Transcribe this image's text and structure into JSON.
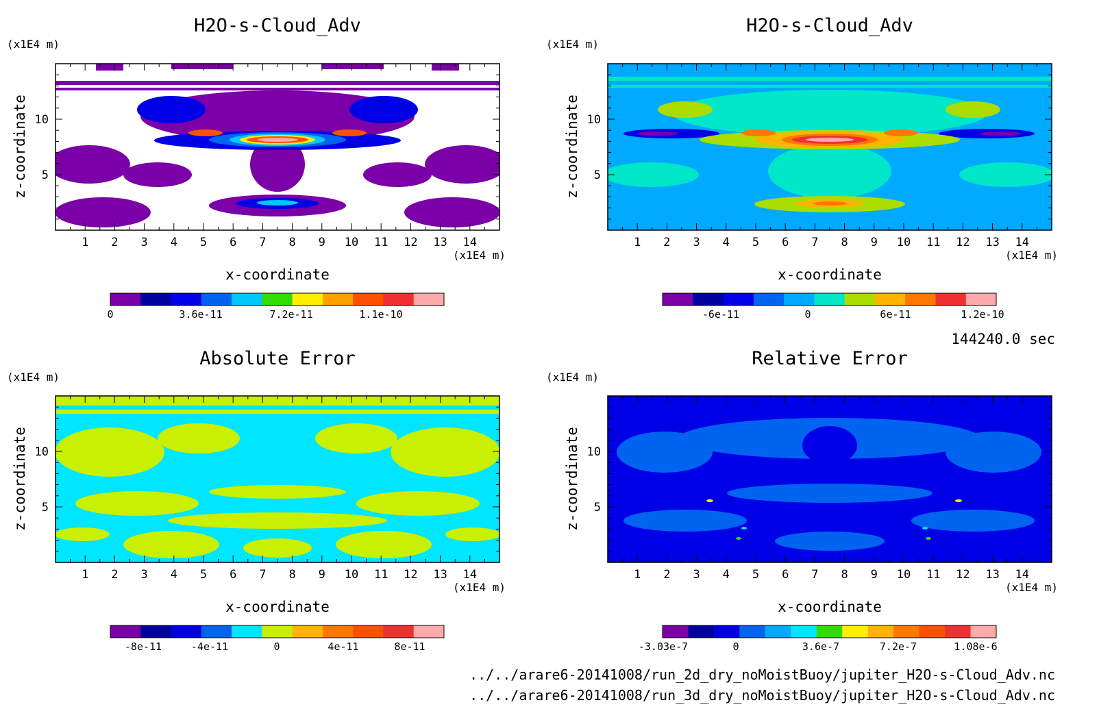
{
  "time_label": "144240.0 sec",
  "file_paths": [
    "../../arare6-20141008/run_2d_dry_noMoistBuoy/jupiter_H2O-s-Cloud_Adv.nc",
    "../../arare6-20141008/run_3d_dry_noMoistBuoy/jupiter_H2O-s-Cloud_Adv.nc"
  ],
  "chart_data": [
    {
      "type": "heatmap",
      "title": "H2O-s-Cloud_Adv",
      "xlabel": "x-coordinate",
      "ylabel": "z-coordinate",
      "x_unit": "(x1E4 m)",
      "y_unit": "(x1E4 m)",
      "xlim": [
        0,
        15
      ],
      "ylim": [
        0,
        15
      ],
      "x_ticks": [
        "1",
        "2",
        "3",
        "4",
        "5",
        "6",
        "7",
        "8",
        "9",
        "10",
        "11",
        "12",
        "13",
        "14"
      ],
      "y_ticks": [
        "5",
        "10"
      ],
      "colorbar_labels": [
        "0",
        "3.6e-11",
        "7.2e-11",
        "1.1e-10"
      ],
      "colorbar_colors": [
        "#7b00a8",
        "#0000a0",
        "#0000e6",
        "#0064f0",
        "#00c8ff",
        "#32dc00",
        "#ffee00",
        "#ffa000",
        "#ff5000",
        "#f03030",
        "#ffaaaa"
      ],
      "colormap_rendering": "white/purple background, blue-to-red core near z≈8 and z≈2.5"
    },
    {
      "type": "heatmap",
      "title": "H2O-s-Cloud_Adv",
      "xlabel": "x-coordinate",
      "ylabel": "z-coordinate",
      "x_unit": "(x1E4 m)",
      "y_unit": "(x1E4 m)",
      "xlim": [
        0,
        15
      ],
      "ylim": [
        0,
        15
      ],
      "x_ticks": [
        "1",
        "2",
        "3",
        "4",
        "5",
        "6",
        "7",
        "8",
        "9",
        "10",
        "11",
        "12",
        "13",
        "14"
      ],
      "y_ticks": [
        "5",
        "10"
      ],
      "colorbar_labels": [
        "-6e-11",
        "0",
        "6e-11",
        "1.2e-10"
      ],
      "colorbar_colors": [
        "#7b00a8",
        "#0000a0",
        "#0000e6",
        "#0064f0",
        "#00aaff",
        "#00e6c8",
        "#aadc00",
        "#ffb400",
        "#ff7800",
        "#f03030",
        "#ffaaaa"
      ]
    },
    {
      "type": "heatmap",
      "title": "Absolute Error",
      "xlabel": "x-coordinate",
      "ylabel": "z-coordinate",
      "x_unit": "(x1E4 m)",
      "y_unit": "(x1E4 m)",
      "xlim": [
        0,
        15
      ],
      "ylim": [
        0,
        15
      ],
      "x_ticks": [
        "1",
        "2",
        "3",
        "4",
        "5",
        "6",
        "7",
        "8",
        "9",
        "10",
        "11",
        "12",
        "13",
        "14"
      ],
      "y_ticks": [
        "5",
        "10"
      ],
      "colorbar_labels": [
        "-8e-11",
        "-4e-11",
        "0",
        "4e-11",
        "8e-11"
      ],
      "colorbar_colors": [
        "#7b00a8",
        "#0000a0",
        "#0000e6",
        "#0064f0",
        "#00e6ff",
        "#c8f000",
        "#ffb400",
        "#ff7800",
        "#ff5000",
        "#f03030",
        "#ffaaaa"
      ]
    },
    {
      "type": "heatmap",
      "title": "Relative Error",
      "xlabel": "x-coordinate",
      "ylabel": "z-coordinate",
      "x_unit": "(x1E4 m)",
      "y_unit": "(x1E4 m)",
      "xlim": [
        0,
        15
      ],
      "ylim": [
        0,
        15
      ],
      "x_ticks": [
        "1",
        "2",
        "3",
        "4",
        "5",
        "6",
        "7",
        "8",
        "9",
        "10",
        "11",
        "12",
        "13",
        "14"
      ],
      "y_ticks": [
        "5",
        "10"
      ],
      "colorbar_labels": [
        "-3.03e-7",
        "0",
        "3.6e-7",
        "7.2e-7",
        "1.08e-6"
      ],
      "colorbar_colors": [
        "#7b00a8",
        "#0000a0",
        "#0000e6",
        "#0064f0",
        "#00aaff",
        "#00e6ff",
        "#32dc00",
        "#ffee00",
        "#ffb400",
        "#ff7800",
        "#ff5000",
        "#f03030",
        "#ffaaaa"
      ]
    }
  ]
}
